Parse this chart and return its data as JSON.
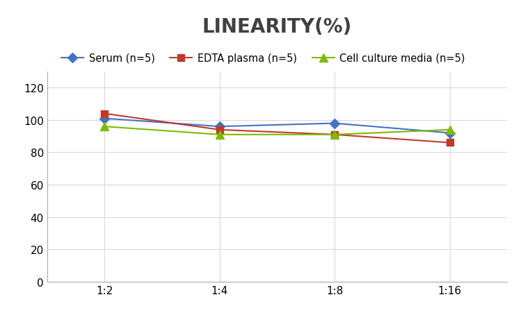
{
  "title": "LINEARITY(%)",
  "title_fontsize": 20,
  "title_color": "#404040",
  "x_labels": [
    "1:2",
    "1:4",
    "1:8",
    "1:16"
  ],
  "series": [
    {
      "label": "Serum (n=5)",
      "values": [
        101,
        96,
        98,
        92
      ],
      "color": "#4472C4",
      "marker": "D",
      "markersize": 7,
      "linewidth": 1.5
    },
    {
      "label": "EDTA plasma (n=5)",
      "values": [
        104,
        94,
        91,
        86
      ],
      "color": "#C0392B",
      "marker": "s",
      "markersize": 7,
      "linewidth": 1.5
    },
    {
      "label": "Cell culture media (n=5)",
      "values": [
        96,
        91,
        91,
        94
      ],
      "color": "#7FBA00",
      "marker": "^",
      "markersize": 8,
      "linewidth": 1.5
    }
  ],
  "ylim": [
    0,
    130
  ],
  "yticks": [
    0,
    20,
    40,
    60,
    80,
    100,
    120
  ],
  "grid_color": "#D9D9D9",
  "background_color": "#FFFFFF",
  "legend_fontsize": 10.5,
  "axis_fontsize": 11
}
